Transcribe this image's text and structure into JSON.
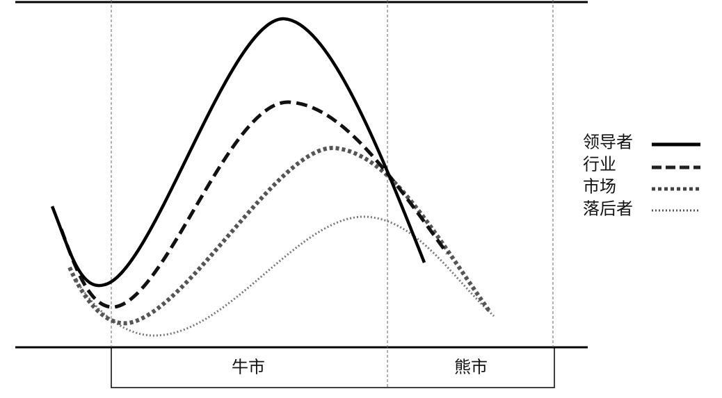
{
  "legend": [
    "领导者",
    "行业",
    "市场",
    "落后者"
  ],
  "phases": [
    "牛市",
    "熊市"
  ]
}
